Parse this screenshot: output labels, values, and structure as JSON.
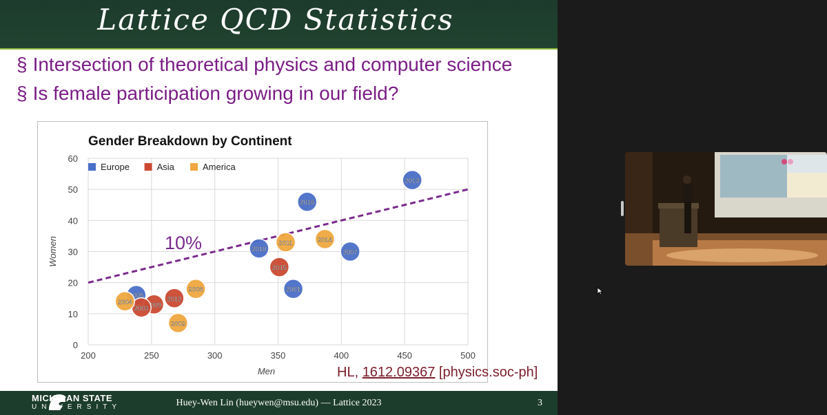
{
  "slide": {
    "title": "Lattice QCD Statistics",
    "bullets": [
      {
        "mark": "§",
        "text": "Intersection of theoretical physics and computer science"
      },
      {
        "mark": "§",
        "text": "Is female participation growing in our field?"
      }
    ],
    "citation": {
      "prefix": "HL, ",
      "arxiv": "1612.09367",
      "suffix": " [physics.soc-ph]"
    },
    "footer": {
      "university": "MICHIGAN STATE",
      "university_sub": "UNIVERSITY",
      "text": "Huey-Wen Lin (hueywen@msu.edu) — Lattice 2023",
      "page": "3"
    }
  },
  "chart_data": {
    "type": "scatter",
    "title": "Gender Breakdown by Continent",
    "xlabel": "Men",
    "ylabel": "Women",
    "xlim": [
      200,
      500
    ],
    "ylim": [
      0,
      60
    ],
    "xticks": [
      200,
      250,
      300,
      350,
      400,
      450,
      500
    ],
    "yticks": [
      0,
      10,
      20,
      30,
      40,
      50,
      60
    ],
    "grid": true,
    "legend_position": "top-left",
    "trendline": {
      "label": "10%",
      "x": [
        200,
        500
      ],
      "y": [
        20,
        50
      ],
      "color": "#7a2a8c"
    },
    "series": [
      {
        "name": "Europe",
        "color": "#4a6fc9",
        "points": [
          {
            "label": "2013",
            "x": 456,
            "y": 53
          },
          {
            "label": "2016",
            "x": 373,
            "y": 46
          },
          {
            "label": "2010",
            "x": 335,
            "y": 31
          },
          {
            "label": "2007",
            "x": 407,
            "y": 30
          },
          {
            "label": "2001",
            "x": 362,
            "y": 18
          },
          {
            "label": "2005",
            "x": 238,
            "y": 16
          }
        ]
      },
      {
        "name": "Asia",
        "color": "#cc4a32",
        "points": [
          {
            "label": "2015",
            "x": 351,
            "y": 25
          },
          {
            "label": "2012",
            "x": 268,
            "y": 15
          },
          {
            "label": "2009",
            "x": 252,
            "y": 13
          },
          {
            "label": "2003",
            "x": 242,
            "y": 12
          }
        ]
      },
      {
        "name": "America",
        "color": "#f0a83f",
        "points": [
          {
            "label": "2014",
            "x": 387,
            "y": 34
          },
          {
            "label": "2011",
            "x": 356,
            "y": 33
          },
          {
            "label": "2008",
            "x": 285,
            "y": 18
          },
          {
            "label": "2004",
            "x": 229,
            "y": 14
          },
          {
            "label": "2002",
            "x": 271,
            "y": 7
          }
        ]
      }
    ]
  }
}
